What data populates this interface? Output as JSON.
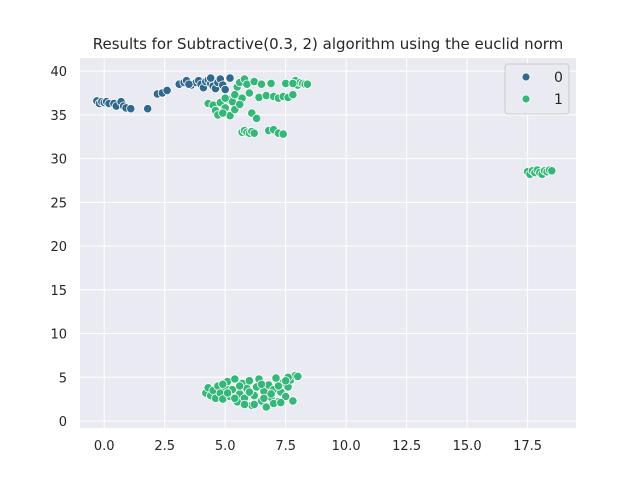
{
  "chart_data": {
    "type": "scatter",
    "title": "Results for Subtractive(0.3, 2) algorithm using the euclid norm",
    "xlabel": "",
    "ylabel": "",
    "xlim": [
      -1.0,
      19.5
    ],
    "ylim": [
      -0.8,
      41.5
    ],
    "xticks": [
      0.0,
      2.5,
      5.0,
      7.5,
      10.0,
      12.5,
      15.0,
      17.5
    ],
    "xtick_labels": [
      "0.0",
      "2.5",
      "5.0",
      "7.5",
      "10.0",
      "12.5",
      "15.0",
      "17.5"
    ],
    "yticks": [
      0,
      5,
      10,
      15,
      20,
      25,
      30,
      35,
      40
    ],
    "ytick_labels": [
      "0",
      "5",
      "10",
      "15",
      "20",
      "25",
      "30",
      "35",
      "40"
    ],
    "grid": true,
    "background": "#eaeaf2",
    "legend": {
      "placement": "top-right",
      "entries": [
        "0",
        "1"
      ]
    },
    "series": [
      {
        "name": "0",
        "color": "#31688e",
        "points": [
          [
            -0.3,
            36.6
          ],
          [
            -0.2,
            36.3
          ],
          [
            -0.1,
            36.5
          ],
          [
            0.0,
            36.4
          ],
          [
            0.1,
            36.5
          ],
          [
            0.2,
            36.3
          ],
          [
            0.4,
            36.3
          ],
          [
            0.5,
            36.0
          ],
          [
            0.7,
            36.5
          ],
          [
            0.8,
            36.0
          ],
          [
            0.9,
            35.8
          ],
          [
            1.1,
            35.7
          ],
          [
            1.8,
            35.7
          ],
          [
            2.2,
            37.4
          ],
          [
            2.4,
            37.5
          ],
          [
            2.6,
            37.8
          ],
          [
            3.1,
            38.5
          ],
          [
            3.3,
            38.7
          ],
          [
            3.4,
            38.9
          ],
          [
            3.6,
            38.4
          ],
          [
            3.8,
            38.7
          ],
          [
            3.9,
            38.9
          ],
          [
            4.0,
            38.5
          ],
          [
            4.1,
            38.1
          ],
          [
            4.2,
            38.8
          ],
          [
            4.3,
            39.0
          ],
          [
            4.4,
            38.6
          ],
          [
            4.5,
            38.3
          ],
          [
            4.6,
            38.0
          ],
          [
            4.7,
            38.7
          ],
          [
            4.8,
            39.1
          ],
          [
            4.9,
            38.4
          ],
          [
            5.0,
            37.9
          ],
          [
            5.2,
            39.2
          ],
          [
            4.4,
            39.2
          ],
          [
            3.5,
            38.5
          ]
        ]
      },
      {
        "name": "1",
        "color": "#35b779",
        "points": [
          [
            4.3,
            36.3
          ],
          [
            4.5,
            36.1
          ],
          [
            4.6,
            35.5
          ],
          [
            4.7,
            35.0
          ],
          [
            4.8,
            36.4
          ],
          [
            5.0,
            35.8
          ],
          [
            5.1,
            36.8
          ],
          [
            5.2,
            34.9
          ],
          [
            5.3,
            36.5
          ],
          [
            5.4,
            37.3
          ],
          [
            5.5,
            38.2
          ],
          [
            5.6,
            38.7
          ],
          [
            5.7,
            36.9
          ],
          [
            5.8,
            39.1
          ],
          [
            5.9,
            38.5
          ],
          [
            6.0,
            37.5
          ],
          [
            6.1,
            35.2
          ],
          [
            6.2,
            38.8
          ],
          [
            6.3,
            34.6
          ],
          [
            6.4,
            37.0
          ],
          [
            6.5,
            38.5
          ],
          [
            6.7,
            37.2
          ],
          [
            6.9,
            38.6
          ],
          [
            7.0,
            37.1
          ],
          [
            7.2,
            36.9
          ],
          [
            7.4,
            37.1
          ],
          [
            7.5,
            38.6
          ],
          [
            7.6,
            37.0
          ],
          [
            7.8,
            37.3
          ],
          [
            7.9,
            38.9
          ],
          [
            8.0,
            38.4
          ],
          [
            8.1,
            38.7
          ],
          [
            8.2,
            38.6
          ],
          [
            8.3,
            38.5
          ],
          [
            8.4,
            38.5
          ],
          [
            7.8,
            38.6
          ],
          [
            5.4,
            35.6
          ],
          [
            5.6,
            36.2
          ],
          [
            5.0,
            36.9
          ],
          [
            4.9,
            35.2
          ],
          [
            5.7,
            33.0
          ],
          [
            5.8,
            33.2
          ],
          [
            5.9,
            33.0
          ],
          [
            6.0,
            32.9
          ],
          [
            6.1,
            33.1
          ],
          [
            6.2,
            32.9
          ],
          [
            6.8,
            33.2
          ],
          [
            7.0,
            33.3
          ],
          [
            7.2,
            32.9
          ],
          [
            7.4,
            32.8
          ],
          [
            17.5,
            28.5
          ],
          [
            17.6,
            28.2
          ],
          [
            17.7,
            28.6
          ],
          [
            17.8,
            28.4
          ],
          [
            17.9,
            28.7
          ],
          [
            18.0,
            28.4
          ],
          [
            18.1,
            28.2
          ],
          [
            18.2,
            28.6
          ],
          [
            18.3,
            28.5
          ],
          [
            18.4,
            28.7
          ],
          [
            18.5,
            28.6
          ],
          [
            4.2,
            3.2
          ],
          [
            4.3,
            3.8
          ],
          [
            4.4,
            2.9
          ],
          [
            4.5,
            3.5
          ],
          [
            4.6,
            2.6
          ],
          [
            4.7,
            4.0
          ],
          [
            4.8,
            3.2
          ],
          [
            4.9,
            2.5
          ],
          [
            5.0,
            3.9
          ],
          [
            5.1,
            4.5
          ],
          [
            5.2,
            2.8
          ],
          [
            5.3,
            3.6
          ],
          [
            5.4,
            4.8
          ],
          [
            5.5,
            2.2
          ],
          [
            5.6,
            3.1
          ],
          [
            5.7,
            4.3
          ],
          [
            5.8,
            2.6
          ],
          [
            5.9,
            3.7
          ],
          [
            6.0,
            4.6
          ],
          [
            6.1,
            1.8
          ],
          [
            6.2,
            2.9
          ],
          [
            6.3,
            3.9
          ],
          [
            6.4,
            4.8
          ],
          [
            6.5,
            2.3
          ],
          [
            6.6,
            3.4
          ],
          [
            6.7,
            1.6
          ],
          [
            6.8,
            4.1
          ],
          [
            6.9,
            2.7
          ],
          [
            7.0,
            3.6
          ],
          [
            7.1,
            4.9
          ],
          [
            7.2,
            2.2
          ],
          [
            7.3,
            3.3
          ],
          [
            7.4,
            4.4
          ],
          [
            7.5,
            2.8
          ],
          [
            7.6,
            3.9
          ],
          [
            7.7,
            4.7
          ],
          [
            7.8,
            2.3
          ],
          [
            7.9,
            5.2
          ],
          [
            8.0,
            5.1
          ],
          [
            7.6,
            5.0
          ],
          [
            5.1,
            3.2
          ],
          [
            5.6,
            4.0
          ],
          [
            6.2,
            1.9
          ],
          [
            6.5,
            4.2
          ],
          [
            7.0,
            2.0
          ],
          [
            7.5,
            4.6
          ],
          [
            5.8,
            1.9
          ],
          [
            6.9,
            3.1
          ],
          [
            7.3,
            2.1
          ],
          [
            4.9,
            4.2
          ],
          [
            5.4,
            2.6
          ],
          [
            6.0,
            3.3
          ],
          [
            6.6,
            2.6
          ],
          [
            7.2,
            4.0
          ]
        ]
      }
    ]
  }
}
